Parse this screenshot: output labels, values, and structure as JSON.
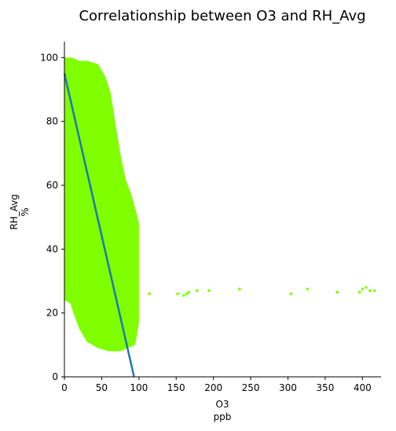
{
  "chart_data": {
    "type": "scatter",
    "title": "Correlationship between O3 and RH_Avg",
    "xlabel": "O3",
    "xunit": "ppb",
    "ylabel": "RH_Avg",
    "yunit": "%",
    "xlim": [
      0,
      425
    ],
    "ylim": [
      0,
      105
    ],
    "xticks": [
      0,
      50,
      100,
      150,
      200,
      250,
      300,
      350,
      400
    ],
    "yticks": [
      0,
      20,
      40,
      60,
      80,
      100
    ],
    "grid": false,
    "legend": "none",
    "colors": {
      "points": "#7fff00",
      "regression": "#1f77b4"
    },
    "dense_cluster": {
      "upper_edge": [
        [
          0,
          100
        ],
        [
          10,
          100
        ],
        [
          20,
          99
        ],
        [
          30,
          99
        ],
        [
          45,
          98
        ],
        [
          55,
          94
        ],
        [
          62,
          89
        ],
        [
          68,
          80
        ],
        [
          75,
          70
        ],
        [
          82,
          62
        ],
        [
          90,
          57
        ],
        [
          96,
          52
        ],
        [
          100,
          48
        ],
        [
          100,
          25
        ],
        [
          100,
          17
        ]
      ],
      "lower_edge": [
        [
          0,
          24
        ],
        [
          8,
          23
        ],
        [
          12,
          20
        ],
        [
          20,
          15
        ],
        [
          30,
          11
        ],
        [
          45,
          9
        ],
        [
          60,
          8
        ],
        [
          75,
          8
        ],
        [
          85,
          9
        ],
        [
          95,
          10
        ]
      ]
    },
    "outliers": [
      [
        114,
        26
      ],
      [
        152,
        26
      ],
      [
        160,
        25.5
      ],
      [
        164,
        26
      ],
      [
        167,
        26.5
      ],
      [
        178,
        27
      ],
      [
        194,
        27
      ],
      [
        235,
        27.5
      ],
      [
        304,
        26
      ],
      [
        326,
        27.5
      ],
      [
        366,
        26.5
      ],
      [
        396,
        26.5
      ],
      [
        400,
        27.5
      ],
      [
        405,
        28
      ],
      [
        410,
        27
      ],
      [
        416,
        27
      ]
    ],
    "regression_line": {
      "x": [
        0,
        93.5
      ],
      "y": [
        95,
        0
      ]
    }
  }
}
